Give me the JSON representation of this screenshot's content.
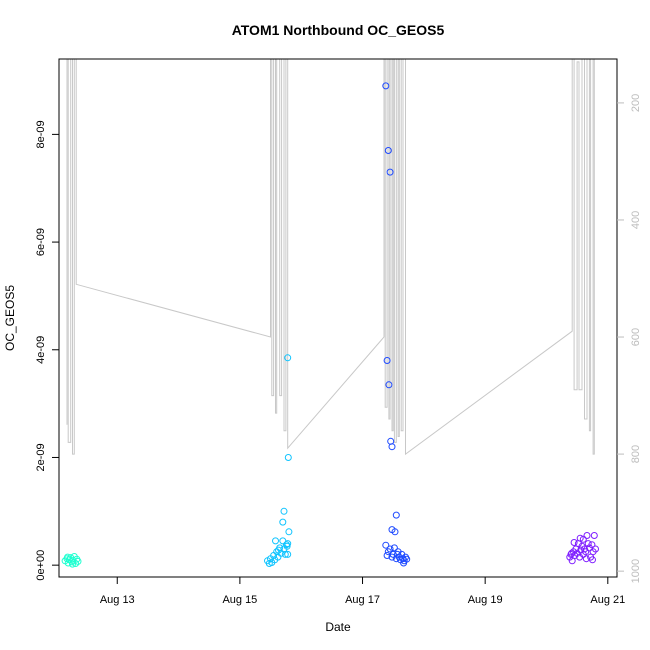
{
  "chart_data": {
    "type": "scatter",
    "title": "ATOM1 Northbound OC_GEOS5",
    "xlabel": "Date",
    "ylabel": "OC_GEOS5",
    "x_ticks": [
      {
        "value": 13,
        "label": "Aug 13"
      },
      {
        "value": 15,
        "label": "Aug 15"
      },
      {
        "value": 17,
        "label": "Aug 17"
      },
      {
        "value": 19,
        "label": "Aug 19"
      },
      {
        "value": 21,
        "label": "Aug 21"
      }
    ],
    "y_ticks": [
      {
        "value": 0,
        "label": "0e+00"
      },
      {
        "value": 2e-09,
        "label": "2e-09"
      },
      {
        "value": 4e-09,
        "label": "4e-09"
      },
      {
        "value": 6e-09,
        "label": "6e-09"
      },
      {
        "value": 8e-09,
        "label": "8e-09"
      }
    ],
    "y2_ticks": [
      {
        "value": 200,
        "label": "200"
      },
      {
        "value": 400,
        "label": "400"
      },
      {
        "value": 600,
        "label": "600"
      },
      {
        "value": 800,
        "label": "800"
      },
      {
        "value": 1000,
        "label": "1000"
      }
    ],
    "xlim": [
      12.05,
      21.15
    ],
    "ylim": [
      -2.2e-10,
      9.4e-09
    ],
    "y2lim": [
      1010,
      125
    ],
    "y2_reversed": true,
    "y2_color": "#bdbdbd",
    "grid": false,
    "legend": "none",
    "series": [
      {
        "color": "#1effd0",
        "points": [
          [
            12.15,
            8e-11
          ],
          [
            12.18,
            1.2e-10
          ],
          [
            12.2,
            4e-11
          ],
          [
            12.22,
            1e-10
          ],
          [
            12.24,
            1.4e-10
          ],
          [
            12.26,
            6e-11
          ],
          [
            12.28,
            9e-11
          ],
          [
            12.3,
            1.6e-10
          ],
          [
            12.32,
            3e-11
          ],
          [
            12.34,
            1.1e-10
          ],
          [
            12.36,
            7e-11
          ],
          [
            12.19,
            1.5e-10
          ],
          [
            12.27,
            2e-11
          ]
        ]
      },
      {
        "color": "#0fc4ff",
        "points": [
          [
            15.45,
            8e-11
          ],
          [
            15.48,
            3e-11
          ],
          [
            15.5,
            1.2e-10
          ],
          [
            15.52,
            5e-11
          ],
          [
            15.55,
            1.8e-10
          ],
          [
            15.57,
            1e-10
          ],
          [
            15.6,
            2.5e-10
          ],
          [
            15.62,
            1.5e-10
          ],
          [
            15.65,
            3.2e-10
          ],
          [
            15.67,
            2.2e-10
          ],
          [
            15.7,
            4.5e-10
          ],
          [
            15.72,
            3e-10
          ],
          [
            15.74,
            2e-10
          ],
          [
            15.76,
            3.8e-10
          ],
          [
            15.77,
            3.5e-10
          ],
          [
            15.78,
            4e-10
          ],
          [
            15.58,
            4.5e-10
          ],
          [
            15.63,
            2.8e-10
          ],
          [
            15.7,
            8e-10
          ],
          [
            15.72,
            1e-09
          ],
          [
            15.8,
            6.2e-10
          ],
          [
            15.78,
            2e-10
          ],
          [
            15.79,
            2e-09
          ],
          [
            15.78,
            3.85e-09
          ]
        ]
      },
      {
        "color": "#1e4aff",
        "points": [
          [
            17.38,
            8.9e-09
          ],
          [
            17.42,
            7.7e-09
          ],
          [
            17.45,
            7.3e-09
          ],
          [
            17.4,
            3.8e-09
          ],
          [
            17.43,
            3.35e-09
          ],
          [
            17.46,
            2.3e-09
          ],
          [
            17.48,
            2.2e-09
          ],
          [
            17.55,
            9.3e-10
          ],
          [
            17.48,
            6.6e-10
          ],
          [
            17.53,
            6.2e-10
          ],
          [
            17.38,
            3.7e-10
          ],
          [
            17.42,
            2.5e-10
          ],
          [
            17.4,
            1.8e-10
          ],
          [
            17.45,
            3e-10
          ],
          [
            17.48,
            1.5e-10
          ],
          [
            17.5,
            2e-10
          ],
          [
            17.52,
            3.2e-10
          ],
          [
            17.55,
            1.2e-10
          ],
          [
            17.58,
            2.5e-10
          ],
          [
            17.6,
            1.5e-10
          ],
          [
            17.62,
            1e-10
          ],
          [
            17.64,
            2e-10
          ],
          [
            17.66,
            1.2e-10
          ],
          [
            17.68,
            8e-11
          ],
          [
            17.7,
            1.5e-10
          ],
          [
            17.72,
            1.1e-10
          ],
          [
            17.67,
            4e-11
          ],
          [
            17.57,
            2e-10
          ]
        ]
      },
      {
        "color": "#7f1eff",
        "points": [
          [
            20.38,
            1.5e-10
          ],
          [
            20.4,
            2e-10
          ],
          [
            20.42,
            8e-11
          ],
          [
            20.44,
            2.5e-10
          ],
          [
            20.46,
            1.8e-10
          ],
          [
            20.48,
            3e-10
          ],
          [
            20.5,
            2.2e-10
          ],
          [
            20.52,
            4e-10
          ],
          [
            20.54,
            1.5e-10
          ],
          [
            20.56,
            2.8e-10
          ],
          [
            20.58,
            3.5e-10
          ],
          [
            20.6,
            4.8e-10
          ],
          [
            20.62,
            3e-10
          ],
          [
            20.64,
            2.5e-10
          ],
          [
            20.66,
            5.5e-10
          ],
          [
            20.68,
            4e-10
          ],
          [
            20.7,
            3.2e-10
          ],
          [
            20.72,
            1.5e-10
          ],
          [
            20.74,
            3.8e-10
          ],
          [
            20.76,
            2.5e-10
          ],
          [
            20.78,
            5.5e-10
          ],
          [
            20.8,
            3e-10
          ],
          [
            20.45,
            4.2e-10
          ],
          [
            20.55,
            5e-10
          ],
          [
            20.65,
            1.2e-10
          ],
          [
            20.75,
            1e-10
          ],
          [
            20.41,
            2.2e-10
          ],
          [
            20.6,
            2e-10
          ]
        ]
      }
    ],
    "secondary_line": {
      "color": "#c8c8c8",
      "points": [
        [
          12.18,
          750
        ],
        [
          12.18,
          125
        ],
        [
          12.2,
          125
        ],
        [
          12.2,
          780
        ],
        [
          12.24,
          780
        ],
        [
          12.24,
          125
        ],
        [
          12.27,
          125
        ],
        [
          12.27,
          800
        ],
        [
          12.3,
          800
        ],
        [
          12.3,
          125
        ],
        [
          12.33,
          125
        ],
        [
          12.33,
          510
        ],
        [
          15.5,
          600
        ],
        [
          15.5,
          125
        ],
        [
          15.52,
          125
        ],
        [
          15.52,
          700
        ],
        [
          15.55,
          700
        ],
        [
          15.55,
          125
        ],
        [
          15.58,
          125
        ],
        [
          15.58,
          730
        ],
        [
          15.6,
          730
        ],
        [
          15.6,
          125
        ],
        [
          15.65,
          125
        ],
        [
          15.65,
          700
        ],
        [
          15.68,
          700
        ],
        [
          15.68,
          125
        ],
        [
          15.72,
          125
        ],
        [
          15.72,
          760
        ],
        [
          15.75,
          760
        ],
        [
          15.75,
          125
        ],
        [
          15.78,
          125
        ],
        [
          15.78,
          790
        ],
        [
          17.35,
          600
        ],
        [
          17.35,
          125
        ],
        [
          17.37,
          125
        ],
        [
          17.37,
          720
        ],
        [
          17.4,
          720
        ],
        [
          17.4,
          125
        ],
        [
          17.43,
          125
        ],
        [
          17.43,
          740
        ],
        [
          17.45,
          740
        ],
        [
          17.45,
          125
        ],
        [
          17.48,
          125
        ],
        [
          17.48,
          760
        ],
        [
          17.5,
          760
        ],
        [
          17.5,
          125
        ],
        [
          17.52,
          125
        ],
        [
          17.52,
          780
        ],
        [
          17.55,
          780
        ],
        [
          17.55,
          125
        ],
        [
          17.58,
          125
        ],
        [
          17.58,
          770
        ],
        [
          17.6,
          770
        ],
        [
          17.6,
          125
        ],
        [
          17.63,
          125
        ],
        [
          17.63,
          760
        ],
        [
          17.66,
          760
        ],
        [
          17.66,
          125
        ],
        [
          17.7,
          125
        ],
        [
          17.7,
          800
        ],
        [
          20.42,
          590
        ],
        [
          20.42,
          125
        ],
        [
          20.45,
          125
        ],
        [
          20.45,
          690
        ],
        [
          20.5,
          690
        ],
        [
          20.5,
          130
        ],
        [
          20.53,
          130
        ],
        [
          20.53,
          690
        ],
        [
          20.58,
          690
        ],
        [
          20.58,
          125
        ],
        [
          20.62,
          125
        ],
        [
          20.62,
          740
        ],
        [
          20.66,
          740
        ],
        [
          20.66,
          125
        ],
        [
          20.7,
          125
        ],
        [
          20.7,
          760
        ],
        [
          20.72,
          760
        ],
        [
          20.72,
          125
        ],
        [
          20.76,
          125
        ],
        [
          20.76,
          800
        ],
        [
          20.78,
          800
        ],
        [
          20.78,
          125
        ]
      ]
    }
  }
}
